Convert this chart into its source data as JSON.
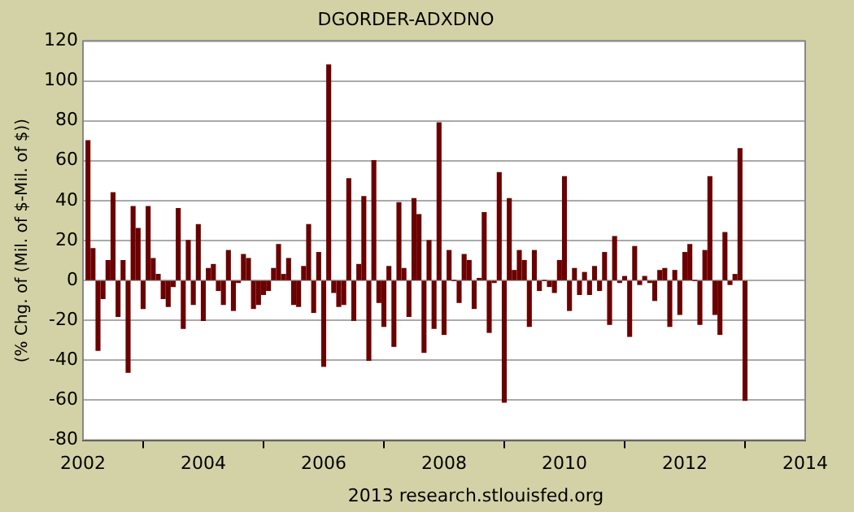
{
  "chart_data": {
    "type": "bar",
    "title": "DGORDER-ADXDNO",
    "ylabel": "(% Chg. of (Mil. of $-Mil. of $))",
    "x": [
      "2002-02",
      "2002-03",
      "2002-04",
      "2002-05",
      "2002-06",
      "2002-07",
      "2002-08",
      "2002-09",
      "2002-10",
      "2002-11",
      "2002-12",
      "2003-01",
      "2003-02",
      "2003-03",
      "2003-04",
      "2003-05",
      "2003-06",
      "2003-07",
      "2003-08",
      "2003-09",
      "2003-10",
      "2003-11",
      "2003-12",
      "2004-01",
      "2004-02",
      "2004-03",
      "2004-04",
      "2004-05",
      "2004-06",
      "2004-07",
      "2004-08",
      "2004-09",
      "2004-10",
      "2004-11",
      "2004-12",
      "2005-01",
      "2005-02",
      "2005-03",
      "2005-04",
      "2005-05",
      "2005-06",
      "2005-07",
      "2005-08",
      "2005-09",
      "2005-10",
      "2005-11",
      "2005-12",
      "2006-01",
      "2006-02",
      "2006-03",
      "2006-04",
      "2006-05",
      "2006-06",
      "2006-07",
      "2006-08",
      "2006-09",
      "2006-10",
      "2006-11",
      "2006-12",
      "2007-01",
      "2007-02",
      "2007-03",
      "2007-04",
      "2007-05",
      "2007-06",
      "2007-07",
      "2007-08",
      "2007-09",
      "2007-10",
      "2007-11",
      "2007-12",
      "2008-01",
      "2008-02",
      "2008-03",
      "2008-04",
      "2008-05",
      "2008-06",
      "2008-07",
      "2008-08",
      "2008-09",
      "2008-10",
      "2008-11",
      "2008-12",
      "2009-01",
      "2009-02",
      "2009-03",
      "2009-04",
      "2009-05",
      "2009-06",
      "2009-07",
      "2009-08",
      "2009-09",
      "2009-10",
      "2009-11",
      "2009-12",
      "2010-01",
      "2010-02",
      "2010-03",
      "2010-04",
      "2010-05",
      "2010-06",
      "2010-07",
      "2010-08",
      "2010-09",
      "2010-10",
      "2010-11",
      "2010-12",
      "2011-01",
      "2011-02",
      "2011-03",
      "2011-04",
      "2011-05",
      "2011-06",
      "2011-07",
      "2011-08",
      "2011-09",
      "2011-10",
      "2011-11",
      "2011-12",
      "2012-01",
      "2012-02",
      "2012-03",
      "2012-04",
      "2012-05",
      "2012-06",
      "2012-07",
      "2012-08",
      "2012-09",
      "2012-10",
      "2012-11",
      "2012-12",
      "2013-01"
    ],
    "values": [
      70,
      16,
      -35,
      -9,
      10,
      44,
      -18,
      10,
      -46,
      37,
      26,
      -14,
      37,
      11,
      3,
      -9,
      -13,
      -3,
      36,
      -24,
      20,
      -12,
      28,
      -20,
      6,
      8,
      -5,
      -12,
      15,
      -15,
      -1,
      13,
      11,
      -14,
      -12,
      -7,
      -5,
      6,
      18,
      3,
      11,
      -12,
      -13,
      7,
      28,
      -16,
      14,
      -43,
      108,
      -6,
      -13,
      -12,
      51,
      -20,
      8,
      42,
      -40,
      60,
      -11,
      -23,
      7,
      -33,
      39,
      6,
      -18,
      41,
      33,
      -36,
      20,
      -24,
      79,
      -27,
      15,
      0,
      -11,
      13,
      10,
      -14,
      1,
      34,
      -26,
      -1,
      54,
      -61,
      41,
      5,
      15,
      10,
      -23,
      15,
      -5,
      0,
      -3,
      -6,
      10,
      52,
      -15,
      6,
      -7,
      4,
      -7,
      7,
      -5,
      14,
      -22,
      22,
      -1,
      2,
      -28,
      17,
      -2,
      2,
      -1,
      -10,
      5,
      6,
      -23,
      5,
      -17,
      14,
      18,
      0,
      -22,
      15,
      52,
      -17,
      -27,
      24,
      -2,
      3,
      66,
      -60
    ],
    "color": "#6b0000",
    "xlim": [
      "2002",
      "2014"
    ],
    "xticks": [
      "2002",
      "2004",
      "2006",
      "2008",
      "2010",
      "2012",
      "2014"
    ],
    "ylim": [
      -80,
      120
    ],
    "yticks": [
      -80,
      -60,
      -40,
      -20,
      0,
      20,
      40,
      60,
      80,
      100,
      120
    ],
    "grid": "y",
    "legend": false,
    "annotations": [
      "2013 research.stlouisfed.org"
    ]
  }
}
